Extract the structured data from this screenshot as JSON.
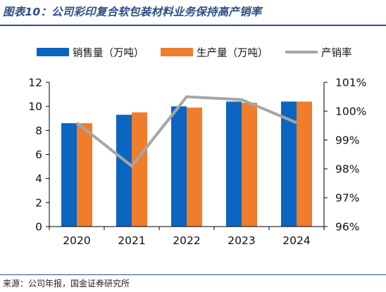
{
  "figure_title": "图表10：公司彩印复合软包装材料业务保持高产销率",
  "source": "来源：公司年报，国金证券研究所",
  "colors": {
    "title": "#2d4f84",
    "sales": "#0b66c2",
    "production": "#ef7d2c",
    "rate": "#a6a6a6",
    "axis": "#000000"
  },
  "chart_data": {
    "type": "bar",
    "categories": [
      "2020",
      "2021",
      "2022",
      "2023",
      "2024"
    ],
    "series": [
      {
        "name": "销售量（万吨）",
        "type": "bar",
        "axis": "left",
        "values": [
          8.6,
          9.3,
          10.0,
          10.4,
          10.4
        ]
      },
      {
        "name": "生产量（万吨）",
        "type": "bar",
        "axis": "left",
        "values": [
          8.6,
          9.5,
          9.9,
          10.3,
          10.4
        ]
      },
      {
        "name": "产销率",
        "type": "line",
        "axis": "right",
        "values": [
          99.6,
          98.1,
          100.5,
          100.4,
          99.6
        ]
      }
    ],
    "y_left": {
      "min": 0,
      "max": 12,
      "step": 2,
      "tick_labels": [
        "0",
        "2",
        "4",
        "6",
        "8",
        "10",
        "12"
      ]
    },
    "y_right": {
      "min": 96,
      "max": 101,
      "step": 1,
      "tick_labels": [
        "96%",
        "97%",
        "98%",
        "99%",
        "100%",
        "101%"
      ]
    },
    "legend_position": "top",
    "grid": false
  }
}
